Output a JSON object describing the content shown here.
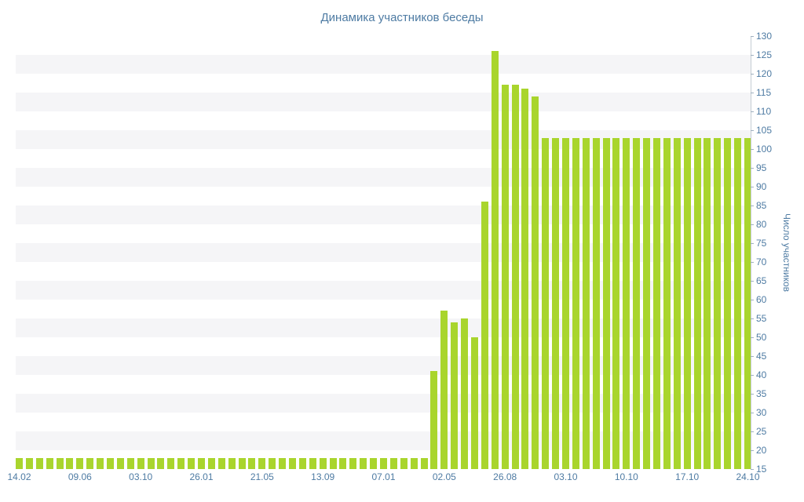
{
  "chart_data": {
    "type": "bar",
    "title": "Динамика участников беседы",
    "xlabel": "",
    "ylabel": "Число участников",
    "ylim": [
      15,
      130
    ],
    "ytick_step": 5,
    "yticks": [
      15,
      20,
      25,
      30,
      35,
      40,
      45,
      50,
      55,
      60,
      65,
      70,
      75,
      80,
      85,
      90,
      95,
      100,
      105,
      110,
      115,
      120,
      125,
      130
    ],
    "grid": "alternating horizontal stripes every 5 units",
    "legend": "none",
    "bar_color": "#a9d52d",
    "axis_color": "#4e7ba3",
    "stripe_color": "#f5f5f7",
    "x_labels": [
      "14.02",
      "09.06",
      "03.10",
      "26.01",
      "21.05",
      "13.09",
      "07.01",
      "02.05",
      "26.08",
      "03.10",
      "10.10",
      "17.10",
      "24.10"
    ],
    "x_label_every": 6,
    "values": [
      18,
      18,
      18,
      18,
      18,
      18,
      18,
      18,
      18,
      18,
      18,
      18,
      18,
      18,
      18,
      18,
      18,
      18,
      18,
      18,
      18,
      18,
      18,
      18,
      18,
      18,
      18,
      18,
      18,
      18,
      18,
      18,
      18,
      18,
      18,
      18,
      18,
      18,
      18,
      18,
      18,
      41,
      57,
      54,
      55,
      50,
      86,
      126,
      117,
      117,
      116,
      114,
      103,
      103,
      103,
      103,
      103,
      103,
      103,
      103,
      103,
      103,
      103,
      103,
      103,
      103,
      103,
      103,
      103,
      103,
      103,
      103,
      103
    ]
  }
}
